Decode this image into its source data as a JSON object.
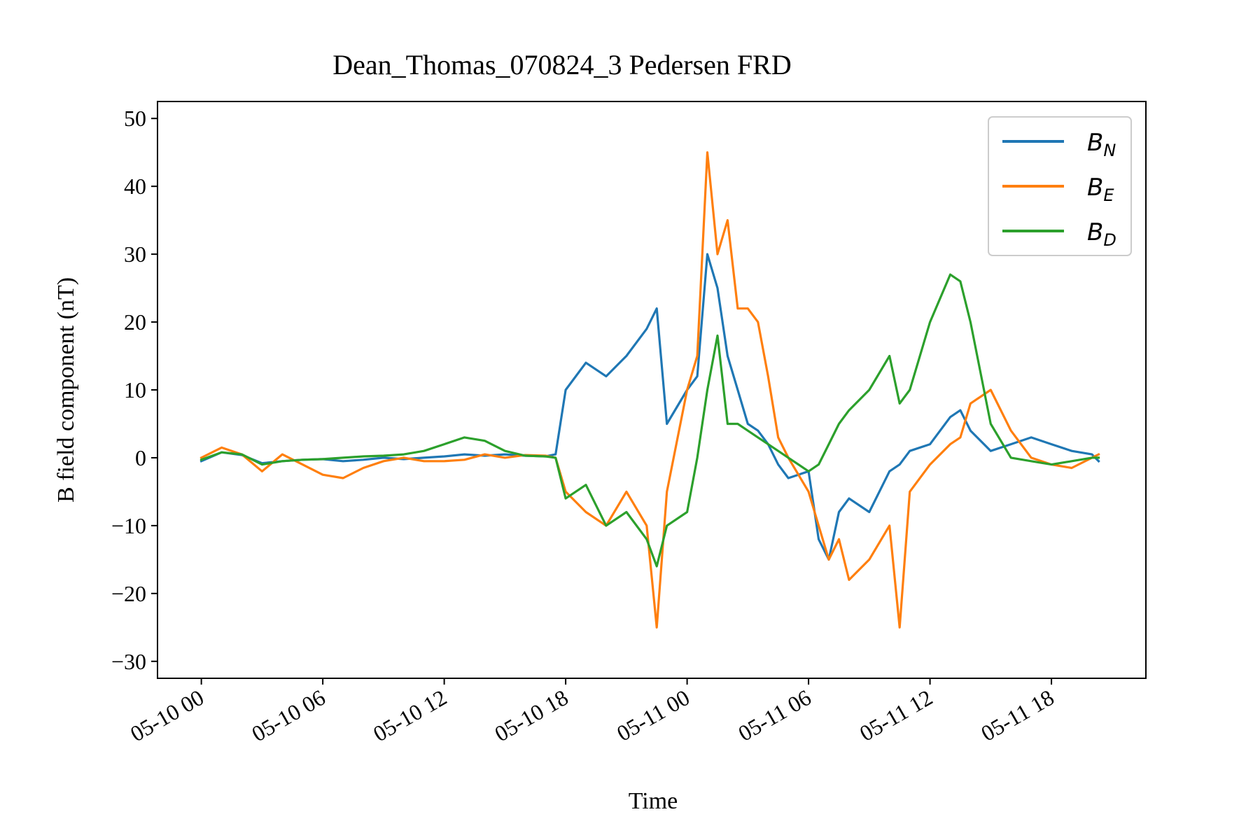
{
  "chart_data": {
    "type": "line",
    "title": "Dean_Thomas_070824_3 Pedersen FRD",
    "xlabel": "Time",
    "ylabel": "B field component (nT)",
    "x_unit": "hours (date-time axis)",
    "xlim": [
      "05-09 21:50",
      "05-11 22:40"
    ],
    "ylim": [
      -32.5,
      52.5
    ],
    "yticks": [
      -30,
      -20,
      -10,
      0,
      10,
      20,
      30,
      40,
      50
    ],
    "yticklabels": [
      "−30",
      "−20",
      "−10",
      "0",
      "10",
      "20",
      "30",
      "40",
      "50"
    ],
    "xticks": [
      "05-10 00:00",
      "05-10 06:00",
      "05-10 12:00",
      "05-10 18:00",
      "05-11 00:00",
      "05-11 06:00",
      "05-11 12:00",
      "05-11 18:00"
    ],
    "xticklabels": [
      "05-10 00",
      "05-10 06",
      "05-10 12",
      "05-10 18",
      "05-11 00",
      "05-11 06",
      "05-11 12",
      "05-11 18"
    ],
    "legend_location": "upper right",
    "grid": false,
    "x": [
      "05-10 00:00",
      "05-10 01:00",
      "05-10 02:00",
      "05-10 03:00",
      "05-10 04:00",
      "05-10 05:00",
      "05-10 06:00",
      "05-10 07:00",
      "05-10 08:00",
      "05-10 09:00",
      "05-10 10:00",
      "05-10 11:00",
      "05-10 12:00",
      "05-10 13:00",
      "05-10 14:00",
      "05-10 15:00",
      "05-10 16:00",
      "05-10 17:00",
      "05-10 17:30",
      "05-10 18:00",
      "05-10 19:00",
      "05-10 20:00",
      "05-10 21:00",
      "05-10 22:00",
      "05-10 22:30",
      "05-10 23:00",
      "05-11 00:00",
      "05-11 00:30",
      "05-11 01:00",
      "05-11 01:30",
      "05-11 02:00",
      "05-11 02:30",
      "05-11 03:00",
      "05-11 03:30",
      "05-11 04:00",
      "05-11 04:30",
      "05-11 05:00",
      "05-11 06:00",
      "05-11 06:30",
      "05-11 07:00",
      "05-11 07:30",
      "05-11 08:00",
      "05-11 09:00",
      "05-11 10:00",
      "05-11 10:30",
      "05-11 11:00",
      "05-11 12:00",
      "05-11 13:00",
      "05-11 13:30",
      "05-11 14:00",
      "05-11 15:00",
      "05-11 16:00",
      "05-11 17:00",
      "05-11 18:00",
      "05-11 19:00",
      "05-11 20:00",
      "05-11 20:20"
    ],
    "series": [
      {
        "name": "B_N",
        "legend_main": "B",
        "legend_sub": "N",
        "color": "#1f77b4",
        "values": [
          -0.5,
          0.8,
          0.4,
          -0.8,
          -0.5,
          -0.3,
          -0.2,
          -0.5,
          -0.3,
          0,
          -0.2,
          0,
          0.2,
          0.5,
          0.3,
          0.5,
          0.3,
          0.2,
          0.5,
          10,
          14,
          12,
          15,
          19,
          22,
          5,
          10,
          12,
          30,
          25,
          15,
          10,
          5,
          4,
          2,
          -1,
          -3,
          -2,
          -12,
          -15,
          -8,
          -6,
          -8,
          -2,
          -1,
          1,
          2,
          6,
          7,
          4,
          1,
          2,
          3,
          2,
          1,
          0.5,
          -0.5
        ]
      },
      {
        "name": "B_E",
        "legend_main": "B",
        "legend_sub": "E",
        "color": "#ff7f0e",
        "values": [
          0,
          1.5,
          0.5,
          -2,
          0.5,
          -1,
          -2.5,
          -3,
          -1.5,
          -0.5,
          0,
          -0.5,
          -0.5,
          -0.3,
          0.5,
          0,
          0.4,
          0.3,
          0,
          -5,
          -8,
          -10,
          -5,
          -10,
          -25,
          -5,
          10,
          15,
          45,
          30,
          35,
          22,
          22,
          20,
          12,
          3,
          0,
          -5,
          -10,
          -15,
          -12,
          -18,
          -15,
          -10,
          -25,
          -5,
          -1,
          2,
          3,
          8,
          10,
          4,
          0,
          -1,
          -1.5,
          0,
          0.5
        ]
      },
      {
        "name": "B_D",
        "legend_main": "B",
        "legend_sub": "D",
        "color": "#2ca02c",
        "values": [
          -0.3,
          0.8,
          0.5,
          -1,
          -0.5,
          -0.3,
          -0.2,
          0,
          0.2,
          0.3,
          0.5,
          1,
          2,
          3,
          2.5,
          1,
          0.3,
          0.2,
          0,
          -6,
          -4,
          -10,
          -8,
          -12,
          -16,
          -10,
          -8,
          0,
          10,
          18,
          5,
          5,
          4,
          3,
          2,
          1,
          0,
          -2,
          -1,
          2,
          5,
          7,
          10,
          15,
          8,
          10,
          20,
          27,
          26,
          20,
          5,
          0,
          -0.5,
          -1,
          -0.5,
          0,
          0
        ]
      }
    ]
  }
}
